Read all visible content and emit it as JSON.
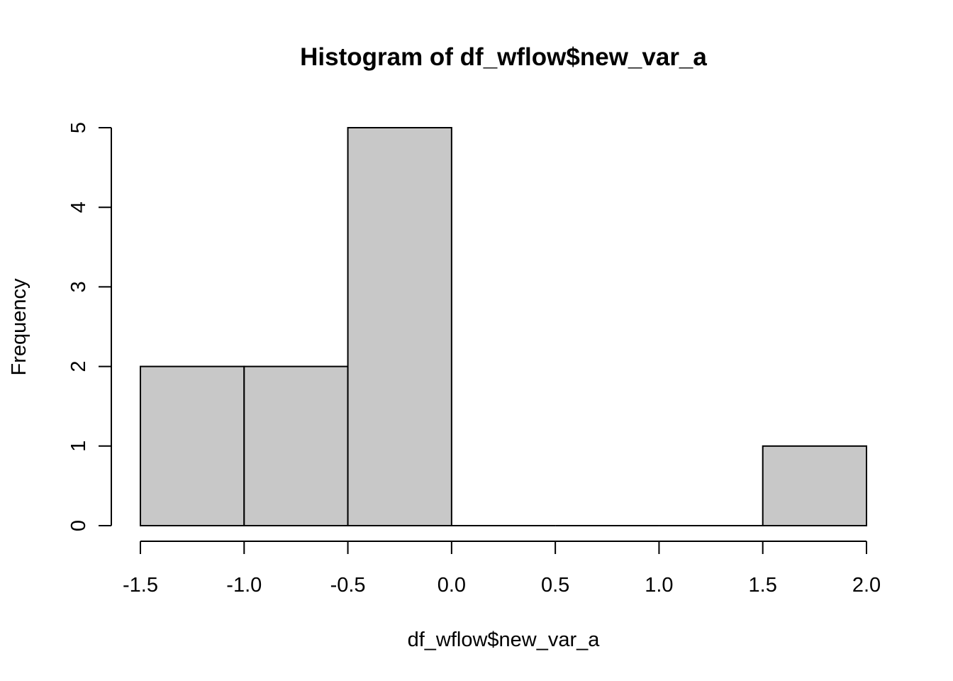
{
  "chart_data": {
    "type": "bar",
    "subtype": "histogram",
    "title": "Histogram of df_wflow$new_var_a",
    "xlabel": "df_wflow$new_var_a",
    "ylabel": "Frequency",
    "bins": [
      {
        "x0": -1.5,
        "x1": -1.0,
        "count": 2
      },
      {
        "x0": -1.0,
        "x1": -0.5,
        "count": 2
      },
      {
        "x0": -0.5,
        "x1": 0.0,
        "count": 5
      },
      {
        "x0": 0.0,
        "x1": 0.5,
        "count": 0
      },
      {
        "x0": 0.5,
        "x1": 1.0,
        "count": 0
      },
      {
        "x0": 1.0,
        "x1": 1.5,
        "count": 0
      },
      {
        "x0": 1.5,
        "x1": 2.0,
        "count": 1
      }
    ],
    "xlim": [
      -1.5,
      2.0
    ],
    "ylim": [
      0,
      5
    ],
    "x_ticks": [
      "-1.5",
      "-1.0",
      "-0.5",
      "0.0",
      "0.5",
      "1.0",
      "1.5",
      "2.0"
    ],
    "y_ticks": [
      "0",
      "1",
      "2",
      "3",
      "4",
      "5"
    ],
    "bar_color": "#c8c8c8",
    "grid": false
  }
}
